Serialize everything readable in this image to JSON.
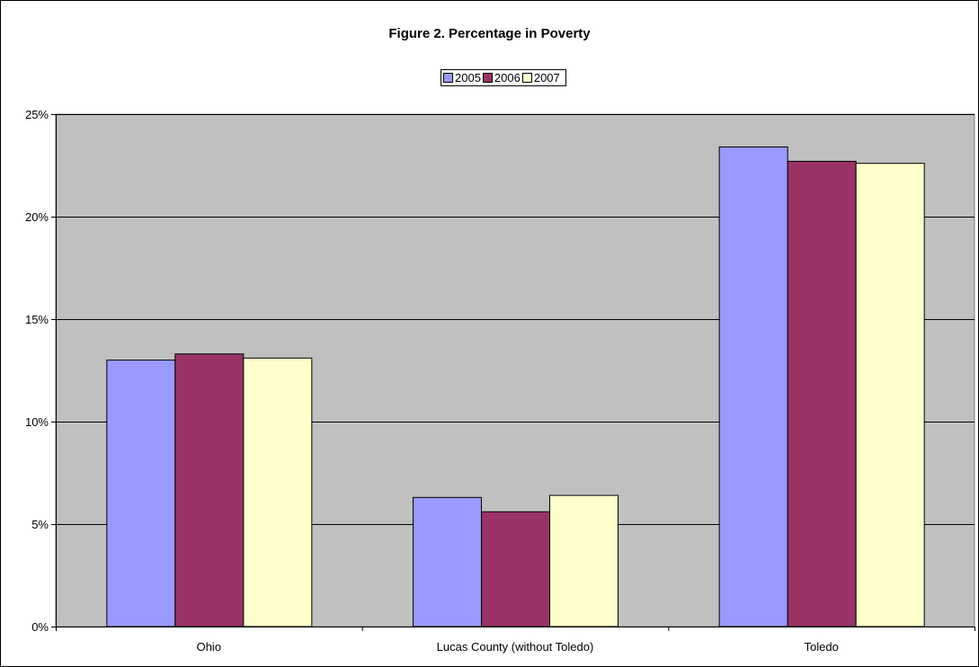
{
  "chart_data": {
    "type": "bar",
    "title": "Figure 2. Percentage in Poverty",
    "categories": [
      "Ohio",
      "Lucas County (without Toledo)",
      "Toledo"
    ],
    "series": [
      {
        "name": "2005",
        "values": [
          13.0,
          6.3,
          23.4
        ],
        "color": "#9999ff"
      },
      {
        "name": "2006",
        "values": [
          13.3,
          5.6,
          22.7
        ],
        "color": "#993366"
      },
      {
        "name": "2007",
        "values": [
          13.1,
          6.4,
          22.6
        ],
        "color": "#ffffcc"
      }
    ],
    "ylim": [
      0,
      25
    ],
    "yticks": [
      0,
      5,
      10,
      15,
      20,
      25
    ],
    "ytick_labels": [
      "0%",
      "5%",
      "10%",
      "15%",
      "20%",
      "25%"
    ],
    "plot_background": "#c0c0c0",
    "grid": true,
    "legend_position": "top-center"
  }
}
